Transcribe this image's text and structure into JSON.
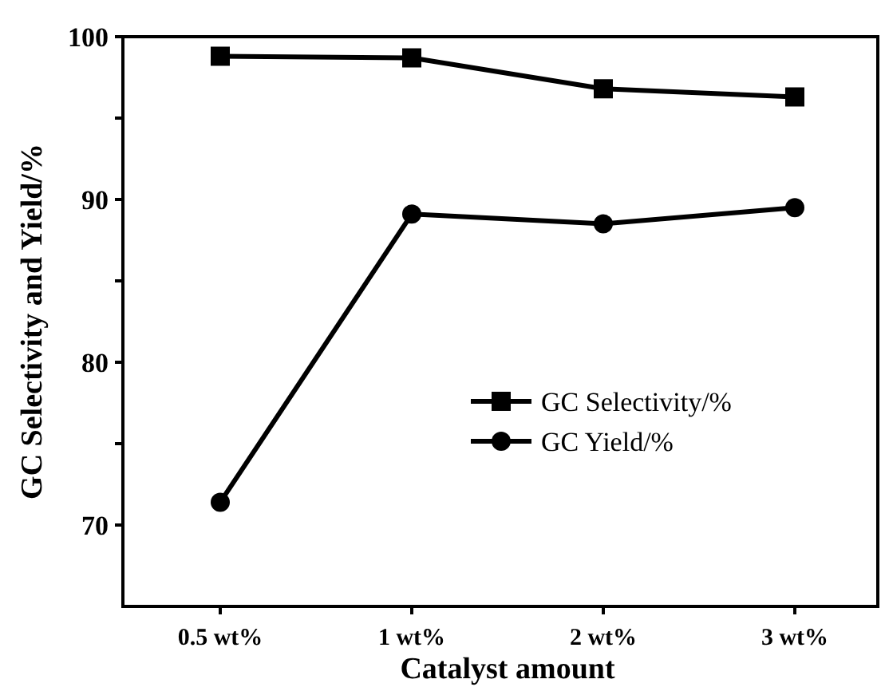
{
  "chart_data": {
    "type": "line",
    "xlabel": "Catalyst amount",
    "ylabel": "GC Selectivity and Yield/%",
    "categories": [
      "0.5 wt%",
      "1 wt%",
      "2 wt%",
      "3 wt%"
    ],
    "series": [
      {
        "name": "GC Selectivity/%",
        "color": "#000000",
        "marker": "square",
        "values": [
          98.8,
          98.7,
          96.8,
          96.3
        ]
      },
      {
        "name": "GC Yield/%",
        "color": "#000000",
        "marker": "circle",
        "values": [
          71.4,
          89.1,
          88.5,
          89.5
        ]
      }
    ],
    "ylim": [
      65,
      100
    ],
    "yticks": [
      {
        "value": 70,
        "label": "70"
      },
      {
        "value": 75,
        "label": null
      },
      {
        "value": 80,
        "label": "80"
      },
      {
        "value": 85,
        "label": null
      },
      {
        "value": 90,
        "label": "90"
      },
      {
        "value": 95,
        "label": null
      },
      {
        "value": 100,
        "label": "100"
      }
    ],
    "grid": false,
    "legend": "right",
    "line_style": "solid"
  }
}
